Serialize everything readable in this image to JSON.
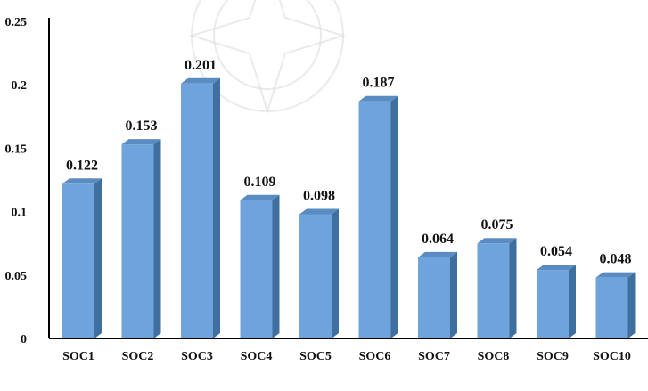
{
  "chart_data": {
    "type": "bar",
    "title": "",
    "xlabel": "",
    "ylabel": "",
    "categories": [
      "SOC1",
      "SOC2",
      "SOC3",
      "SOC4",
      "SOC5",
      "SOC6",
      "SOC7",
      "SOC8",
      "SOC9",
      "SOC10"
    ],
    "values": [
      0.122,
      0.153,
      0.201,
      0.109,
      0.098,
      0.187,
      0.064,
      0.075,
      0.054,
      0.048
    ],
    "data_labels": [
      "0.122",
      "0.153",
      "0.201",
      "0.109",
      "0.098",
      "0.187",
      "0.064",
      "0.075",
      "0.054",
      "0.048"
    ],
    "y_ticks": [
      "0",
      "0.05",
      "0.1",
      "0.15",
      "0.2",
      "0.25"
    ],
    "y_tick_values": [
      0,
      0.05,
      0.1,
      0.15,
      0.2,
      0.25
    ],
    "ylim": [
      0,
      0.25
    ],
    "grid": false,
    "legend": "none",
    "style": "3d-column",
    "colors": {
      "bar_front": "#6fa3dc",
      "bar_side": "#3e6f9f",
      "bar_top": "#5a8bc3",
      "axis": "#000000"
    }
  }
}
